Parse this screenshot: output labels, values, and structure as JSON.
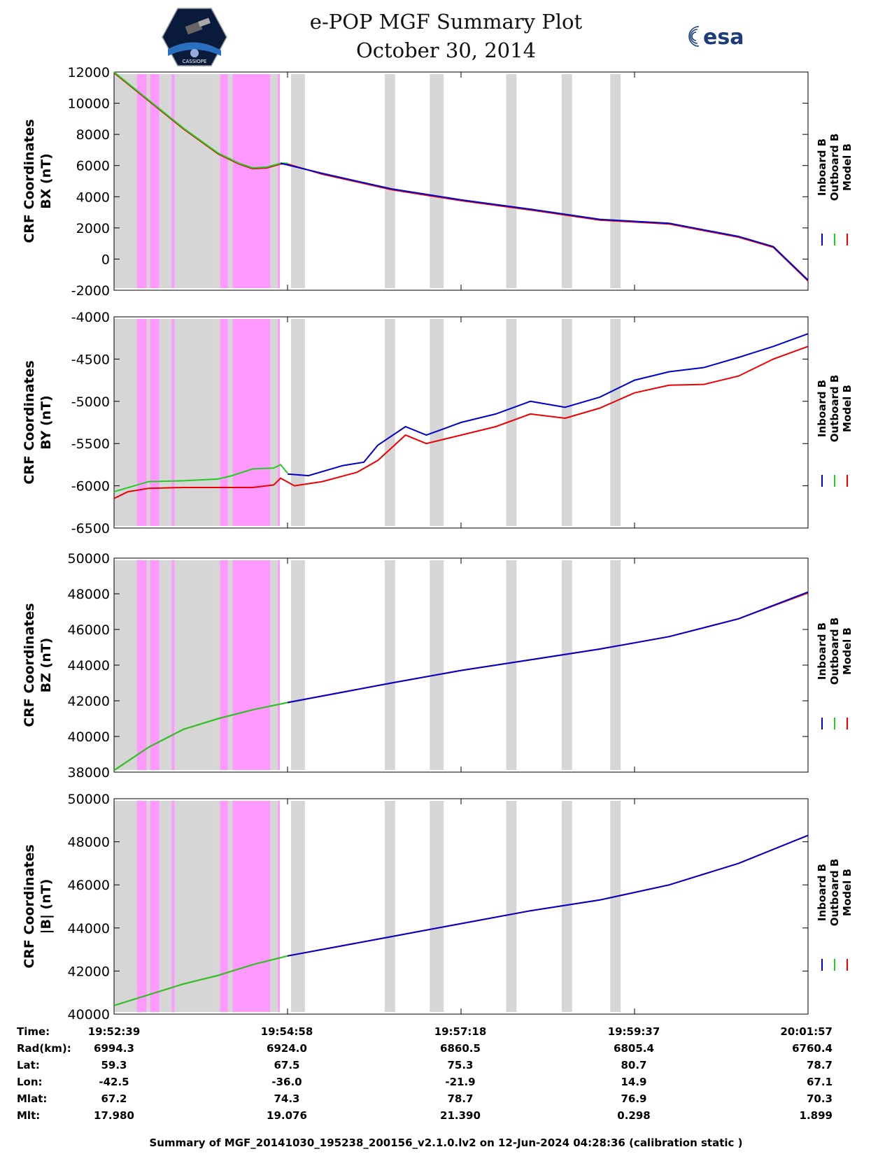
{
  "header": {
    "title_line1": "e-POP MGF Summary Plot",
    "title_line2": "October 30, 2014",
    "left_logo_text": "CASSIOPE",
    "right_logo_text": "esa"
  },
  "legend": {
    "inboard": "Inboard B",
    "outboard": "Outboard B",
    "model": "Model B",
    "colors": {
      "inboard": "#0000cc",
      "outboard": "#22cc22",
      "model": "#ee0000",
      "gray_band": "#d6d6d6",
      "pink_band": "#ff99ff"
    }
  },
  "chart_data": [
    {
      "type": "line",
      "ylabel_line1": "CRF Coordinates",
      "ylabel_line2": "BX (nT)",
      "ylim": [
        -2000,
        12000
      ],
      "yticks": [
        "12000",
        "10000",
        "8000",
        "6000",
        "4000",
        "2000",
        "0",
        "-2000"
      ],
      "ytick_values": [
        12000,
        10000,
        8000,
        6000,
        4000,
        2000,
        0,
        -2000
      ],
      "series": [
        {
          "name": "Outboard B",
          "x": [
            0,
            0.05,
            0.1,
            0.15,
            0.18,
            0.2,
            0.22,
            0.24,
            0.25
          ],
          "values": [
            12000,
            10200,
            8400,
            6800,
            6150,
            5850,
            5900,
            6150,
            6150
          ]
        },
        {
          "name": "Inboard B",
          "x": [
            0.24,
            0.3,
            0.4,
            0.45,
            0.5,
            0.6,
            0.7,
            0.8,
            0.9,
            0.95,
            1.0
          ],
          "values": [
            6150,
            5500,
            4500,
            4150,
            3800,
            3200,
            2550,
            2300,
            1450,
            800,
            -1350
          ]
        },
        {
          "name": "Model B",
          "x": [
            0,
            0.05,
            0.1,
            0.15,
            0.18,
            0.2,
            0.22,
            0.24,
            0.25,
            0.3,
            0.4,
            0.45,
            0.5,
            0.6,
            0.7,
            0.8,
            0.9,
            0.95,
            1.0
          ],
          "values": [
            11950,
            10150,
            8350,
            6750,
            6100,
            5800,
            5850,
            6100,
            6100,
            5450,
            4450,
            4100,
            3750,
            3150,
            2500,
            2250,
            1400,
            750,
            -1400
          ]
        }
      ]
    },
    {
      "type": "line",
      "ylabel_line1": "CRF Coordinates",
      "ylabel_line2": "BY (nT)",
      "ylim": [
        -6500,
        -4000
      ],
      "yticks": [
        "-4000",
        "-4500",
        "-5000",
        "-5500",
        "-6000",
        "-6500"
      ],
      "ytick_values": [
        -4000,
        -4500,
        -5000,
        -5500,
        -6000,
        -6500
      ],
      "series": [
        {
          "name": "Outboard B",
          "x": [
            0,
            0.05,
            0.1,
            0.15,
            0.17,
            0.2,
            0.23,
            0.24,
            0.25
          ],
          "values": [
            -6070,
            -5950,
            -5940,
            -5920,
            -5880,
            -5800,
            -5790,
            -5750,
            -5850
          ]
        },
        {
          "name": "Inboard B",
          "x": [
            0.25,
            0.28,
            0.33,
            0.36,
            0.38,
            0.42,
            0.45,
            0.5,
            0.55,
            0.6,
            0.65,
            0.7,
            0.75,
            0.8,
            0.85,
            0.9,
            0.95,
            1.0
          ],
          "values": [
            -5860,
            -5880,
            -5760,
            -5720,
            -5520,
            -5300,
            -5400,
            -5250,
            -5150,
            -5000,
            -5070,
            -4950,
            -4750,
            -4650,
            -4600,
            -4480,
            -4350,
            -4200
          ]
        },
        {
          "name": "Model B",
          "x": [
            0,
            0.02,
            0.05,
            0.1,
            0.15,
            0.2,
            0.23,
            0.24,
            0.26,
            0.3,
            0.35,
            0.38,
            0.42,
            0.45,
            0.5,
            0.55,
            0.6,
            0.65,
            0.7,
            0.75,
            0.8,
            0.85,
            0.9,
            0.95,
            1.0
          ],
          "values": [
            -6150,
            -6070,
            -6030,
            -6020,
            -6020,
            -6020,
            -5990,
            -5910,
            -6000,
            -5950,
            -5840,
            -5700,
            -5400,
            -5500,
            -5400,
            -5300,
            -5150,
            -5200,
            -5080,
            -4900,
            -4810,
            -4800,
            -4700,
            -4500,
            -4350
          ]
        }
      ]
    },
    {
      "type": "line",
      "ylabel_line1": "CRF Coordinates",
      "ylabel_line2": "BZ (nT)",
      "ylim": [
        38000,
        50000
      ],
      "yticks": [
        "50000",
        "48000",
        "46000",
        "44000",
        "42000",
        "40000",
        "38000"
      ],
      "ytick_values": [
        50000,
        48000,
        46000,
        44000,
        42000,
        40000,
        38000
      ],
      "series": [
        {
          "name": "Outboard B",
          "x": [
            0,
            0.05,
            0.1,
            0.15,
            0.2,
            0.25
          ],
          "values": [
            38100,
            39400,
            40400,
            41000,
            41500,
            41900
          ]
        },
        {
          "name": "Inboard B",
          "x": [
            0.25,
            0.4,
            0.5,
            0.6,
            0.7,
            0.8,
            0.9,
            1.0
          ],
          "values": [
            41900,
            43000,
            43700,
            44300,
            44900,
            45600,
            46600,
            48100
          ]
        },
        {
          "name": "Model B",
          "x": [
            0,
            0.05,
            0.1,
            0.15,
            0.2,
            0.25,
            0.4,
            0.5,
            0.6,
            0.7,
            0.8,
            0.9,
            1.0
          ],
          "values": [
            38100,
            39400,
            40400,
            41000,
            41500,
            41900,
            43000,
            43700,
            44300,
            44900,
            45600,
            46600,
            48050
          ]
        }
      ]
    },
    {
      "type": "line",
      "ylabel_line1": "CRF Coordinates",
      "ylabel_line2": "|B| (nT)",
      "ylim": [
        40000,
        50000
      ],
      "yticks": [
        "50000",
        "48000",
        "46000",
        "44000",
        "42000",
        "40000"
      ],
      "ytick_values": [
        50000,
        48000,
        46000,
        44000,
        42000,
        40000
      ],
      "series": [
        {
          "name": "Outboard B",
          "x": [
            0,
            0.05,
            0.1,
            0.15,
            0.2,
            0.25
          ],
          "values": [
            40400,
            40900,
            41400,
            41800,
            42300,
            42700
          ]
        },
        {
          "name": "Inboard B",
          "x": [
            0.25,
            0.4,
            0.5,
            0.6,
            0.7,
            0.8,
            0.9,
            1.0
          ],
          "values": [
            42700,
            43600,
            44200,
            44800,
            45300,
            46000,
            47000,
            48300
          ]
        },
        {
          "name": "Model B",
          "x": [
            0,
            0.05,
            0.1,
            0.15,
            0.2,
            0.25,
            0.4,
            0.5,
            0.6,
            0.7,
            0.8,
            0.9,
            1.0
          ],
          "values": [
            40400,
            40900,
            41400,
            41800,
            42300,
            42700,
            43600,
            44200,
            44800,
            45300,
            46000,
            47000,
            48300
          ]
        }
      ]
    }
  ],
  "bands": {
    "gray": [
      [
        0.0,
        0.145
      ],
      [
        0.0,
        0.0
      ],
      [
        0.255,
        0.275
      ],
      [
        0.39,
        0.405
      ],
      [
        0.455,
        0.475
      ],
      [
        0.565,
        0.58
      ],
      [
        0.645,
        0.66
      ],
      [
        0.715,
        0.73
      ]
    ],
    "pink": [
      [
        0.033,
        0.047
      ],
      [
        0.052,
        0.065
      ],
      [
        0.083,
        0.087
      ],
      [
        0.153,
        0.164
      ],
      [
        0.171,
        0.225
      ],
      [
        0.236,
        0.239
      ]
    ]
  },
  "gray_first": [
    [
      0.0,
      0.145
    ],
    [
      0.145,
      0.255
    ]
  ],
  "footer": {
    "labels": [
      "Time:",
      "Rad(km):",
      "Lat:",
      "Lon:",
      "Mlat:",
      "Mlt:"
    ],
    "columns": [
      [
        "19:52:39",
        "6994.3",
        "59.3",
        "-42.5",
        "67.2",
        "17.980"
      ],
      [
        "19:54:58",
        "6924.0",
        "67.5",
        "-36.0",
        "74.3",
        "19.076"
      ],
      [
        "19:57:18",
        "6860.5",
        "75.3",
        "-21.9",
        "78.7",
        "21.390"
      ],
      [
        "19:59:37",
        "6805.4",
        "80.7",
        "14.9",
        "76.9",
        "0.298"
      ],
      [
        "20:01:57",
        "6760.4",
        "78.7",
        "67.1",
        "70.3",
        "1.899"
      ]
    ],
    "caption": "Summary of MGF_20141030_195238_200156_v2.1.0.lv2 on 12-Jun-2024 04:28:36 (calibration static )"
  }
}
